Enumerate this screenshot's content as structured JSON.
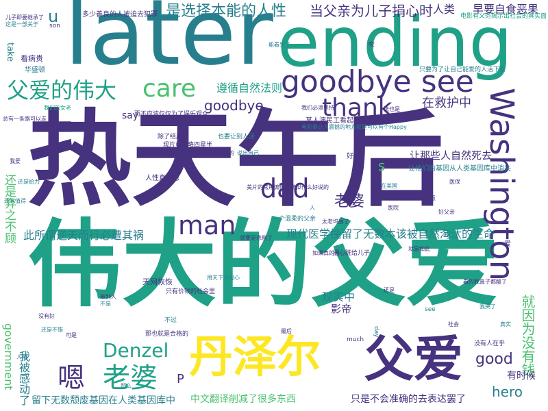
{
  "palette": {
    "purple": "#46327e",
    "teal": "#277f8e",
    "green": "#1fa187",
    "lime": "#4ac16d",
    "yellow": "#fde725",
    "blue": "#365c8d"
  },
  "words": {
    "huge": {
      "rentianhou": "热天午后",
      "weidadefuai": "伟大的父爱",
      "later": "later",
      "ending": "ending"
    },
    "large": {
      "danzeer": "丹泽尔",
      "fuai": "父爱",
      "en": "嗯",
      "laopo": "老婆",
      "washington": "Washington",
      "goodbyesee": "goodbye see",
      "fuaideweida": "父爱的伟大",
      "care": "care",
      "man": "man",
      "dad": "dad",
      "thank": "thank",
      "denzel": "Denzel",
      "jiuyinweimeiyouqian": "就因为没有钱"
    },
    "medium": {
      "shixuanzebennengderenxing": "是选择本能的人性",
      "dangfuqinweierzijuanxinshi": "当父亲为儿子捐心时",
      "goodbye": "goodbye",
      "zunxunzirnfaze": "遵循自然法则",
      "zaijiuhuzhong": "在救护中",
      "laopo2": "老婆",
      "good": "good",
      "hero": "hero",
      "xianshizhong": "现实中",
      "yingdi": "影帝",
      "youshihou": "有时候",
      "zhongwenfanyi": "中文翻译削减了很多东西",
      "zhishibuhui": "只是不会准确的去表达罢了",
      "liuxiawushu": "留下无数颓废基因在人类基因库中",
      "haishifangqi": "还是弃之不顾",
      "wobeiganle": "我被感动了",
      "government": "government",
      "xiandaiyixue": "现代医学挽留了无数本该被自然淘汰的生命",
      "cisuowei": "此所谓逆天而行必遭其祸",
      "rangnaxieren": "让那些人自然死去",
      "renlei": "人类",
      "zaogengzifu": "早要自食恶果",
      "u": "u",
      "say": "say",
      "s": "s",
      "p": "P"
    },
    "small": {
      "w01": "多少善良的人被迫去犯罪",
      "w02": "电影有义务揭示出社会的真实面",
      "w03": "看病贵",
      "w04": "华盛顿",
      "w05": "take",
      "w06": "son",
      "w07": "儿子即要继承了",
      "w08": "这是一部关于",
      "w09": "而不应该仅仅为了娱乐观众",
      "w10": "除了结局",
      "w11": "也要让别人活",
      "w12": "节奏很紧凑",
      "w13": "好吧",
      "w14": "让他们的基因从人类基因库中消失",
      "w15": "某人演民工看起来都像总统",
      "w16": "电影最让人震撼的地方就是可以有个Happy",
      "w17": "现片可以略四星半",
      "w18": "人性真丑恶",
      "w19": "天网恢恢",
      "w20": "不过",
      "w21": "那也就是合格的",
      "w22": "一个温柔的父亲",
      "w23": "只有价钱的社会里",
      "w24": "美片的常用煽情手法似什么好说的",
      "w25": "太老坞厨了",
      "w26": "就要是悲剧了",
      "w27": "没有人在乎",
      "w28": "much",
      "w29": "day",
      "w30": "see",
      "w31": "看的我鼻子都酸了",
      "w32": "把心脏给儿子",
      "w33": "如果真的自",
      "w34": "爱",
      "w35": "在美国",
      "w36": "还有值得",
      "w37": "主要是对父亲的描述不给他的",
      "w38": "只要为了让自己能爱的人活下去",
      "w39": "我们的女老",
      "w40": "法也是",
      "w41": "还是给力",
      "w42": "我爱",
      "w43": "我们必须坚持",
      "w44": "说出自己",
      "w45": "没有好",
      "w46": "哎",
      "w47": "能看哭了",
      "w48": "被别人",
      "w49": "不是",
      "w50": "刻意",
      "w51": "用天下父母心",
      "w52": "好父亲",
      "w53": "社会",
      "w54": "人",
      "w55": "医院",
      "w56": "可是",
      "w57": "真实",
      "w58": "总有一条路可以走",
      "w59": "就是如此",
      "w60": "还是不错",
      "w61": "还是",
      "w62": "那么",
      "w63": "医保",
      "w64": "人情",
      "w65": "最后",
      "w66": "我哭了"
    }
  }
}
